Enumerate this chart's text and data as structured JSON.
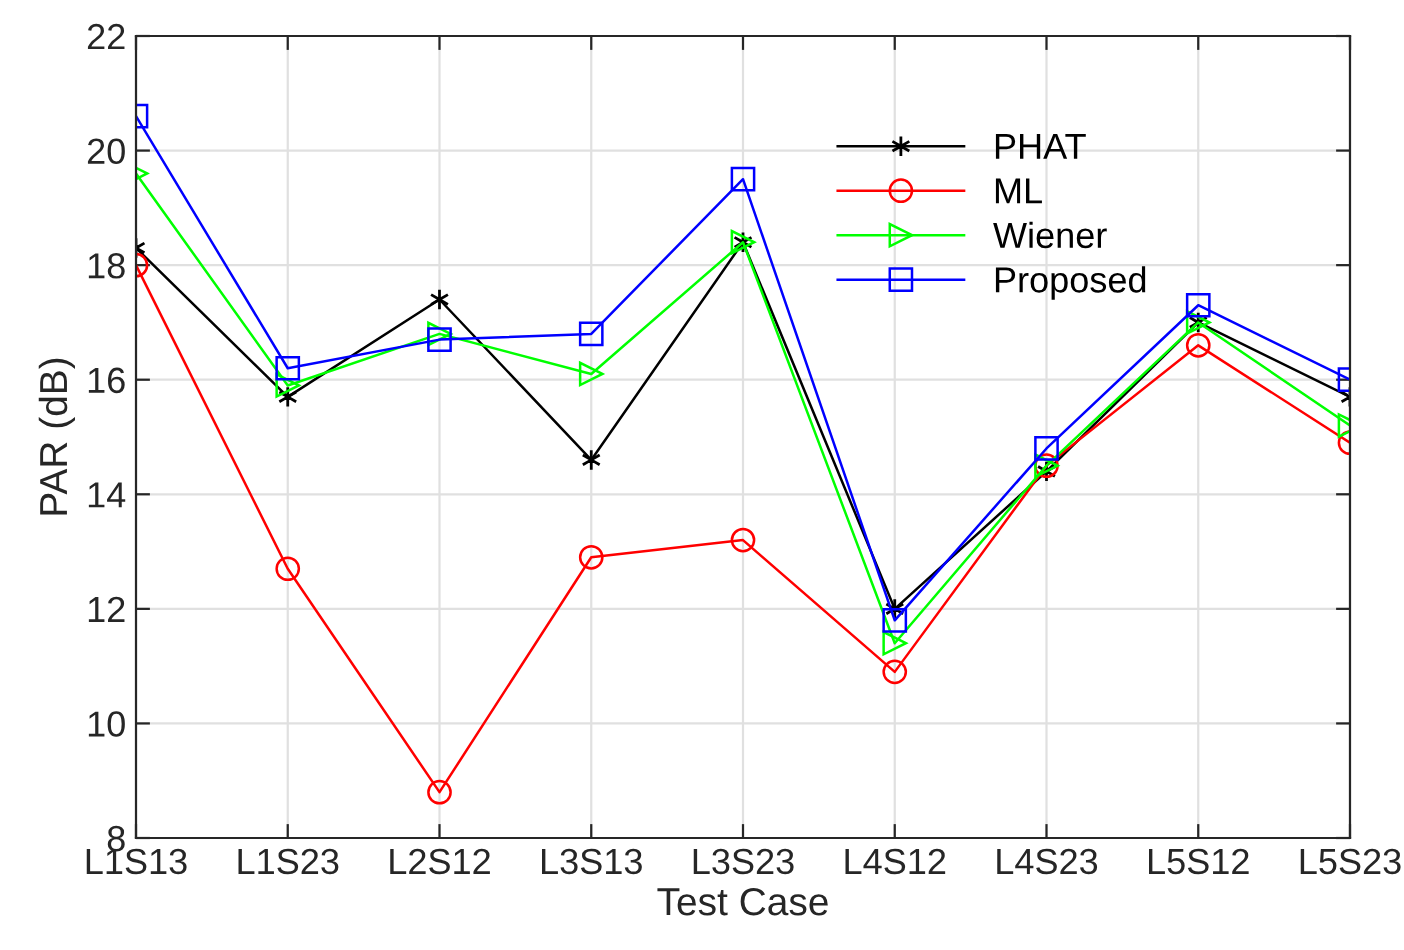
{
  "chart_data": {
    "type": "line",
    "xlabel": "Test Case",
    "ylabel": "PAR (dB)",
    "categories": [
      "L1S13",
      "L1S23",
      "L2S12",
      "L3S13",
      "L3S23",
      "L4S12",
      "L4S23",
      "L5S12",
      "L5S23"
    ],
    "series": [
      {
        "name": "PHAT",
        "color": "#000000",
        "marker": "cross",
        "values": [
          18.3,
          15.7,
          17.4,
          14.6,
          18.4,
          12.0,
          14.4,
          17.0,
          15.7
        ]
      },
      {
        "name": "ML",
        "color": "#ff0000",
        "marker": "circle",
        "values": [
          18.0,
          12.7,
          8.8,
          12.9,
          13.2,
          10.9,
          14.5,
          16.6,
          14.9
        ]
      },
      {
        "name": "Wiener",
        "color": "#00ff00",
        "marker": "triangle",
        "values": [
          19.6,
          15.9,
          16.8,
          16.1,
          18.4,
          11.4,
          14.5,
          17.0,
          15.2
        ]
      },
      {
        "name": "Proposed",
        "color": "#0000ff",
        "marker": "square",
        "values": [
          20.6,
          16.2,
          16.7,
          16.8,
          19.5,
          11.8,
          14.8,
          17.3,
          16.0
        ]
      }
    ],
    "ylim": [
      8,
      22
    ],
    "yticks": [
      8,
      10,
      12,
      14,
      16,
      18,
      20,
      22
    ],
    "grid": true,
    "legend": "top right",
    "line_style": "solid"
  }
}
